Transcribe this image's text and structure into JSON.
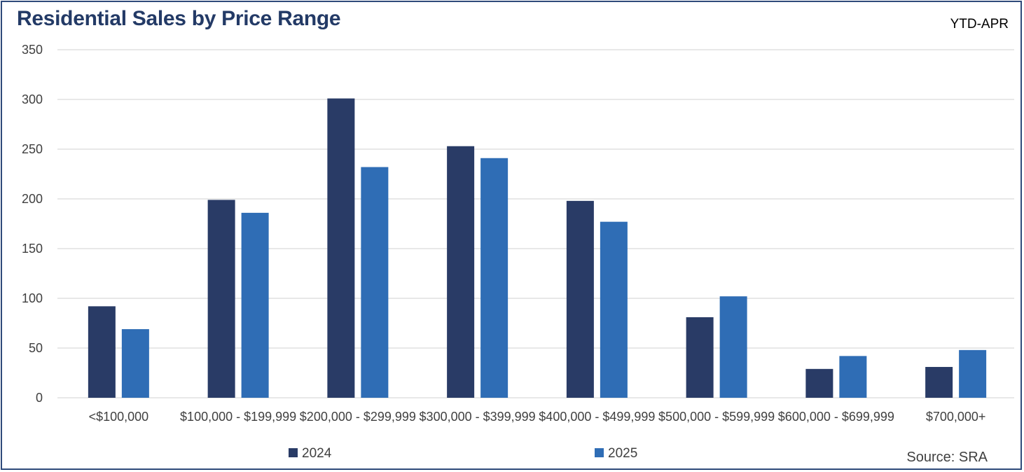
{
  "header": {
    "title": "Residential Sales by Price Range",
    "period": "YTD-APR",
    "source": "Source: SRA"
  },
  "colors": {
    "series_2024": "#293b66",
    "series_2025": "#2f6db5",
    "grid": "#d9d9d9",
    "border": "#2e4a7a"
  },
  "chart_data": {
    "type": "bar",
    "title": "Residential Sales by Price Range",
    "subtitle": "YTD-APR",
    "xlabel": "",
    "ylabel": "",
    "ylim": [
      0,
      350
    ],
    "yticks": [
      0,
      50,
      100,
      150,
      200,
      250,
      300,
      350
    ],
    "grid": true,
    "legend": "bottom",
    "categories": [
      "<$100,000",
      "$100,000 - $199,999",
      "$200,000 - $299,999",
      "$300,000 - $399,999",
      "$400,000 - $499,999",
      "$500,000 - $599,999",
      "$600,000 - $699,999",
      "$700,000+"
    ],
    "series": [
      {
        "name": "2024",
        "values": [
          92,
          199,
          301,
          253,
          198,
          81,
          29,
          31
        ]
      },
      {
        "name": "2025",
        "values": [
          69,
          186,
          232,
          241,
          177,
          102,
          42,
          48
        ]
      }
    ]
  }
}
